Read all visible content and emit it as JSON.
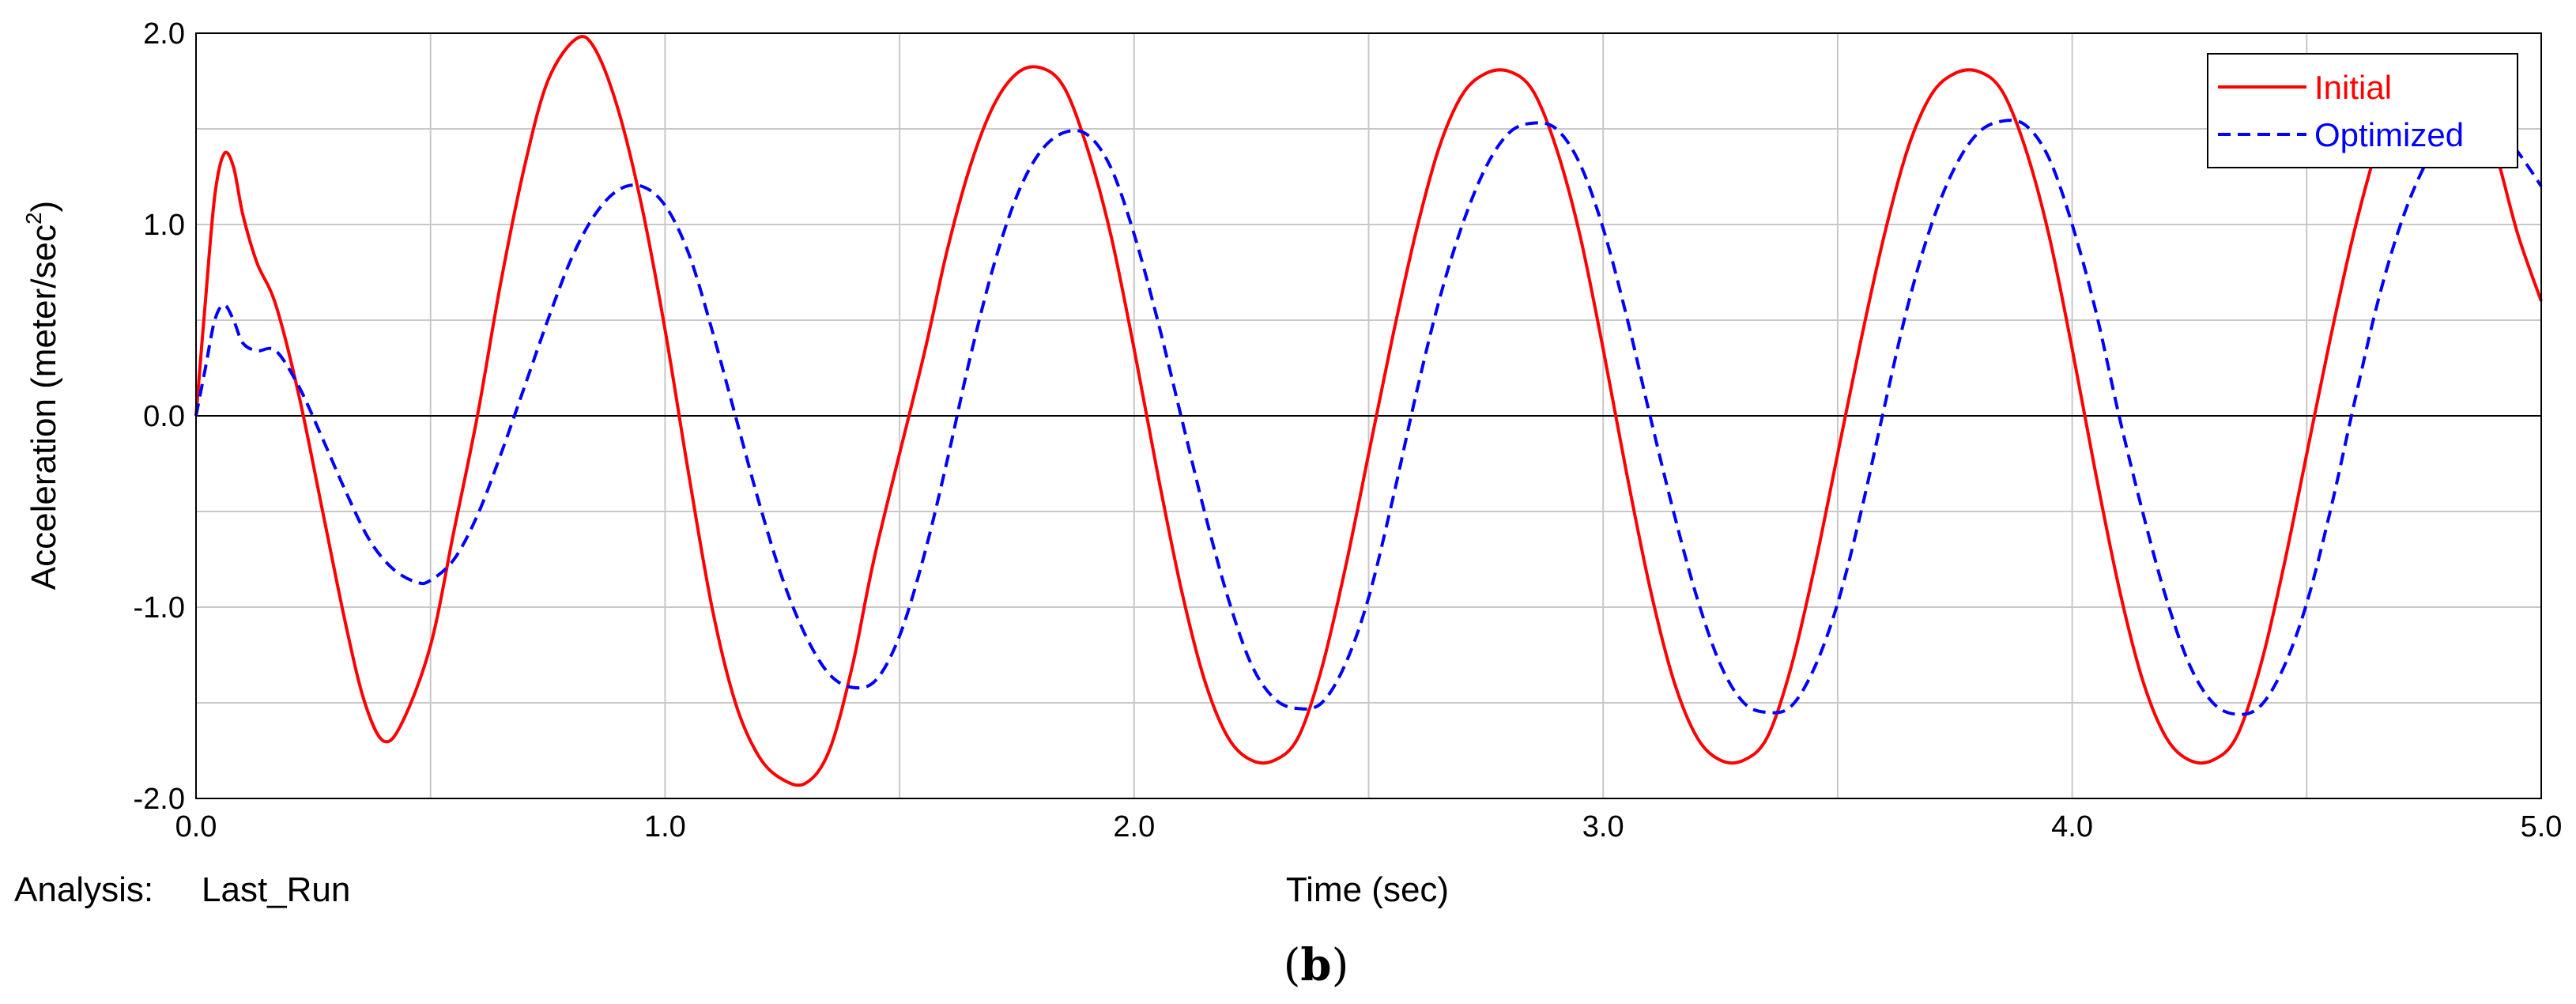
{
  "chart_data": {
    "type": "line",
    "xlabel": "Time (sec)",
    "ylabel": "Acceleration (meter/sec²)",
    "ylabel_parts": {
      "base": "Acceleration (meter/sec",
      "sup": "2",
      "close": ")"
    },
    "xlim": [
      0.0,
      5.0
    ],
    "ylim": [
      -2.0,
      2.0
    ],
    "x_major_ticks": [
      0.0,
      1.0,
      2.0,
      3.0,
      4.0,
      5.0
    ],
    "y_major_ticks": [
      -2.0,
      -1.0,
      0.0,
      1.0,
      2.0
    ],
    "x_tick_labels": [
      "0.0",
      "1.0",
      "2.0",
      "3.0",
      "4.0",
      "5.0"
    ],
    "y_tick_labels": [
      "-2.0",
      "-1.0",
      "0.0",
      "1.0",
      "2.0"
    ],
    "x_minor_step": 0.5,
    "y_minor_step": 0.5,
    "grid": true,
    "legend_position": "top-right",
    "series": [
      {
        "name": "Initial",
        "color": "#ff0000",
        "style": "solid",
        "points": [
          [
            0.0,
            0.0
          ],
          [
            0.02,
            0.6
          ],
          [
            0.04,
            1.15
          ],
          [
            0.06,
            1.37
          ],
          [
            0.08,
            1.3
          ],
          [
            0.1,
            1.05
          ],
          [
            0.13,
            0.8
          ],
          [
            0.17,
            0.58
          ],
          [
            0.22,
            0.1
          ],
          [
            0.27,
            -0.5
          ],
          [
            0.32,
            -1.1
          ],
          [
            0.36,
            -1.5
          ],
          [
            0.4,
            -1.7
          ],
          [
            0.44,
            -1.6
          ],
          [
            0.5,
            -1.2
          ],
          [
            0.55,
            -0.6
          ],
          [
            0.6,
            0.0
          ],
          [
            0.65,
            0.7
          ],
          [
            0.7,
            1.3
          ],
          [
            0.75,
            1.75
          ],
          [
            0.81,
            1.97
          ],
          [
            0.85,
            1.92
          ],
          [
            0.9,
            1.6
          ],
          [
            0.95,
            1.1
          ],
          [
            1.0,
            0.45
          ],
          [
            1.05,
            -0.3
          ],
          [
            1.1,
            -1.0
          ],
          [
            1.15,
            -1.5
          ],
          [
            1.2,
            -1.78
          ],
          [
            1.25,
            -1.9
          ],
          [
            1.3,
            -1.92
          ],
          [
            1.35,
            -1.75
          ],
          [
            1.4,
            -1.3
          ],
          [
            1.45,
            -0.7
          ],
          [
            1.55,
            0.3
          ],
          [
            1.6,
            0.85
          ],
          [
            1.65,
            1.3
          ],
          [
            1.7,
            1.62
          ],
          [
            1.75,
            1.79
          ],
          [
            1.8,
            1.82
          ],
          [
            1.85,
            1.72
          ],
          [
            1.9,
            1.4
          ],
          [
            1.95,
            0.95
          ],
          [
            2.0,
            0.35
          ],
          [
            2.05,
            -0.3
          ],
          [
            2.1,
            -0.9
          ],
          [
            2.15,
            -1.38
          ],
          [
            2.2,
            -1.68
          ],
          [
            2.25,
            -1.8
          ],
          [
            2.3,
            -1.8
          ],
          [
            2.35,
            -1.68
          ],
          [
            2.4,
            -1.32
          ],
          [
            2.45,
            -0.8
          ],
          [
            2.5,
            -0.2
          ],
          [
            2.55,
            0.4
          ],
          [
            2.6,
            0.95
          ],
          [
            2.65,
            1.4
          ],
          [
            2.7,
            1.68
          ],
          [
            2.75,
            1.79
          ],
          [
            2.8,
            1.8
          ],
          [
            2.85,
            1.7
          ],
          [
            2.9,
            1.4
          ],
          [
            2.95,
            0.95
          ],
          [
            3.0,
            0.35
          ],
          [
            3.05,
            -0.3
          ],
          [
            3.1,
            -0.9
          ],
          [
            3.15,
            -1.38
          ],
          [
            3.2,
            -1.68
          ],
          [
            3.25,
            -1.8
          ],
          [
            3.3,
            -1.8
          ],
          [
            3.35,
            -1.68
          ],
          [
            3.4,
            -1.32
          ],
          [
            3.45,
            -0.8
          ],
          [
            3.5,
            -0.2
          ],
          [
            3.55,
            0.4
          ],
          [
            3.6,
            0.95
          ],
          [
            3.65,
            1.4
          ],
          [
            3.7,
            1.68
          ],
          [
            3.75,
            1.79
          ],
          [
            3.8,
            1.8
          ],
          [
            3.85,
            1.7
          ],
          [
            3.9,
            1.4
          ],
          [
            3.95,
            0.95
          ],
          [
            4.0,
            0.35
          ],
          [
            4.05,
            -0.3
          ],
          [
            4.1,
            -0.9
          ],
          [
            4.15,
            -1.38
          ],
          [
            4.2,
            -1.68
          ],
          [
            4.25,
            -1.8
          ],
          [
            4.3,
            -1.8
          ],
          [
            4.35,
            -1.68
          ],
          [
            4.4,
            -1.32
          ],
          [
            4.45,
            -0.8
          ],
          [
            4.5,
            -0.2
          ],
          [
            4.55,
            0.4
          ],
          [
            4.6,
            0.95
          ],
          [
            4.65,
            1.4
          ],
          [
            4.7,
            1.68
          ],
          [
            4.75,
            1.79
          ],
          [
            4.8,
            1.8
          ],
          [
            4.85,
            1.7
          ],
          [
            4.9,
            1.4
          ],
          [
            4.95,
            0.95
          ],
          [
            5.0,
            0.6
          ]
        ]
      },
      {
        "name": "Optimized",
        "color": "#0000ff",
        "style": "dashed",
        "points": [
          [
            0.0,
            0.0
          ],
          [
            0.02,
            0.25
          ],
          [
            0.04,
            0.5
          ],
          [
            0.06,
            0.58
          ],
          [
            0.08,
            0.5
          ],
          [
            0.1,
            0.38
          ],
          [
            0.13,
            0.34
          ],
          [
            0.17,
            0.34
          ],
          [
            0.22,
            0.15
          ],
          [
            0.27,
            -0.12
          ],
          [
            0.32,
            -0.4
          ],
          [
            0.37,
            -0.65
          ],
          [
            0.42,
            -0.8
          ],
          [
            0.47,
            -0.87
          ],
          [
            0.5,
            -0.86
          ],
          [
            0.55,
            -0.75
          ],
          [
            0.6,
            -0.52
          ],
          [
            0.65,
            -0.2
          ],
          [
            0.7,
            0.15
          ],
          [
            0.75,
            0.5
          ],
          [
            0.8,
            0.82
          ],
          [
            0.85,
            1.05
          ],
          [
            0.9,
            1.18
          ],
          [
            0.95,
            1.2
          ],
          [
            1.0,
            1.1
          ],
          [
            1.05,
            0.85
          ],
          [
            1.1,
            0.45
          ],
          [
            1.15,
            0.0
          ],
          [
            1.2,
            -0.45
          ],
          [
            1.25,
            -0.85
          ],
          [
            1.3,
            -1.15
          ],
          [
            1.35,
            -1.35
          ],
          [
            1.4,
            -1.42
          ],
          [
            1.45,
            -1.38
          ],
          [
            1.5,
            -1.15
          ],
          [
            1.55,
            -0.75
          ],
          [
            1.6,
            -0.25
          ],
          [
            1.65,
            0.3
          ],
          [
            1.7,
            0.78
          ],
          [
            1.75,
            1.15
          ],
          [
            1.8,
            1.38
          ],
          [
            1.85,
            1.48
          ],
          [
            1.9,
            1.47
          ],
          [
            1.95,
            1.3
          ],
          [
            2.0,
            0.95
          ],
          [
            2.05,
            0.5
          ],
          [
            2.1,
            0.0
          ],
          [
            2.15,
            -0.5
          ],
          [
            2.2,
            -0.95
          ],
          [
            2.25,
            -1.3
          ],
          [
            2.3,
            -1.48
          ],
          [
            2.35,
            -1.53
          ],
          [
            2.4,
            -1.5
          ],
          [
            2.45,
            -1.3
          ],
          [
            2.5,
            -0.95
          ],
          [
            2.55,
            -0.45
          ],
          [
            2.6,
            0.1
          ],
          [
            2.65,
            0.6
          ],
          [
            2.7,
            1.0
          ],
          [
            2.75,
            1.3
          ],
          [
            2.8,
            1.48
          ],
          [
            2.85,
            1.53
          ],
          [
            2.9,
            1.5
          ],
          [
            2.95,
            1.32
          ],
          [
            3.0,
            0.98
          ],
          [
            3.05,
            0.52
          ],
          [
            3.1,
            0.0
          ],
          [
            3.15,
            -0.5
          ],
          [
            3.2,
            -0.95
          ],
          [
            3.25,
            -1.3
          ],
          [
            3.3,
            -1.5
          ],
          [
            3.35,
            -1.55
          ],
          [
            3.4,
            -1.52
          ],
          [
            3.45,
            -1.32
          ],
          [
            3.5,
            -0.98
          ],
          [
            3.55,
            -0.5
          ],
          [
            3.6,
            0.05
          ],
          [
            3.65,
            0.58
          ],
          [
            3.7,
            1.0
          ],
          [
            3.75,
            1.3
          ],
          [
            3.8,
            1.48
          ],
          [
            3.85,
            1.54
          ],
          [
            3.9,
            1.52
          ],
          [
            3.95,
            1.35
          ],
          [
            4.0,
            1.0
          ],
          [
            4.05,
            0.55
          ],
          [
            4.1,
            0.0
          ],
          [
            4.15,
            -0.5
          ],
          [
            4.2,
            -0.95
          ],
          [
            4.25,
            -1.3
          ],
          [
            4.3,
            -1.5
          ],
          [
            4.35,
            -1.56
          ],
          [
            4.4,
            -1.52
          ],
          [
            4.45,
            -1.32
          ],
          [
            4.5,
            -0.98
          ],
          [
            4.55,
            -0.5
          ],
          [
            4.6,
            0.05
          ],
          [
            4.65,
            0.58
          ],
          [
            4.7,
            1.0
          ],
          [
            4.75,
            1.3
          ],
          [
            4.8,
            1.48
          ],
          [
            4.85,
            1.55
          ],
          [
            4.9,
            1.52
          ],
          [
            4.95,
            1.38
          ],
          [
            5.0,
            1.2
          ]
        ]
      }
    ]
  },
  "footer": {
    "analysis_label": "Analysis:",
    "analysis_value": "Last_Run"
  },
  "caption": {
    "open": "(",
    "letter": "b",
    "close": ")"
  }
}
